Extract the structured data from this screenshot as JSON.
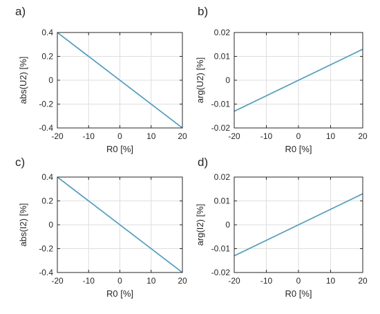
{
  "figure": {
    "background": "#ffffff"
  },
  "chart_data": [
    {
      "panel_label": "a)",
      "type": "line",
      "xlabel": "R0 [%]",
      "ylabel": "abs(U2) [%]",
      "xlim": [
        -20,
        20
      ],
      "ylim": [
        -0.4,
        0.4
      ],
      "xticks": [
        -20,
        -10,
        0,
        10,
        20
      ],
      "yticks": [
        -0.4,
        -0.2,
        0,
        0.2,
        0.4
      ],
      "xtick_labels": [
        "-20",
        "-10",
        "0",
        "10",
        "20"
      ],
      "ytick_labels": [
        "-0.4",
        "-0.2",
        "0",
        "0.2",
        "0.4"
      ],
      "grid": true,
      "series": [
        {
          "x": [
            -20,
            20
          ],
          "y": [
            0.4,
            -0.4
          ],
          "color": "#3f9bcb"
        }
      ]
    },
    {
      "panel_label": "b)",
      "type": "line",
      "xlabel": "R0 [%]",
      "ylabel": "arg(U2) [%]",
      "xlim": [
        -20,
        20
      ],
      "ylim": [
        -0.02,
        0.02
      ],
      "xticks": [
        -20,
        -10,
        0,
        10,
        20
      ],
      "yticks": [
        -0.02,
        -0.01,
        0,
        0.01,
        0.02
      ],
      "xtick_labels": [
        "-20",
        "-10",
        "0",
        "10",
        "20"
      ],
      "ytick_labels": [
        "-0.02",
        "-0.01",
        "0",
        "0.01",
        "0.02"
      ],
      "grid": true,
      "series": [
        {
          "x": [
            -20,
            20
          ],
          "y": [
            -0.013,
            0.013
          ],
          "color": "#3f9bcb"
        }
      ]
    },
    {
      "panel_label": "c)",
      "type": "line",
      "xlabel": "R0 [%]",
      "ylabel": "abs(I2) [%]",
      "xlim": [
        -20,
        20
      ],
      "ylim": [
        -0.4,
        0.4
      ],
      "xticks": [
        -20,
        -10,
        0,
        10,
        20
      ],
      "yticks": [
        -0.4,
        -0.2,
        0,
        0.2,
        0.4
      ],
      "xtick_labels": [
        "-20",
        "-10",
        "0",
        "10",
        "20"
      ],
      "ytick_labels": [
        "-0.4",
        "-0.2",
        "0",
        "0.2",
        "0.4"
      ],
      "grid": true,
      "series": [
        {
          "x": [
            -20,
            20
          ],
          "y": [
            0.4,
            -0.4
          ],
          "color": "#3f9bcb"
        }
      ]
    },
    {
      "panel_label": "d)",
      "type": "line",
      "xlabel": "R0 [%]",
      "ylabel": "arg(I2) [%]",
      "xlim": [
        -20,
        20
      ],
      "ylim": [
        -0.02,
        0.02
      ],
      "xticks": [
        -20,
        -10,
        0,
        10,
        20
      ],
      "yticks": [
        -0.02,
        -0.01,
        0,
        0.01,
        0.02
      ],
      "xtick_labels": [
        "-20",
        "-10",
        "0",
        "10",
        "20"
      ],
      "ytick_labels": [
        "-0.02",
        "-0.01",
        "0",
        "0.01",
        "0.02"
      ],
      "grid": true,
      "series": [
        {
          "x": [
            -20,
            20
          ],
          "y": [
            -0.013,
            0.013
          ],
          "color": "#3f9bcb"
        }
      ]
    }
  ]
}
